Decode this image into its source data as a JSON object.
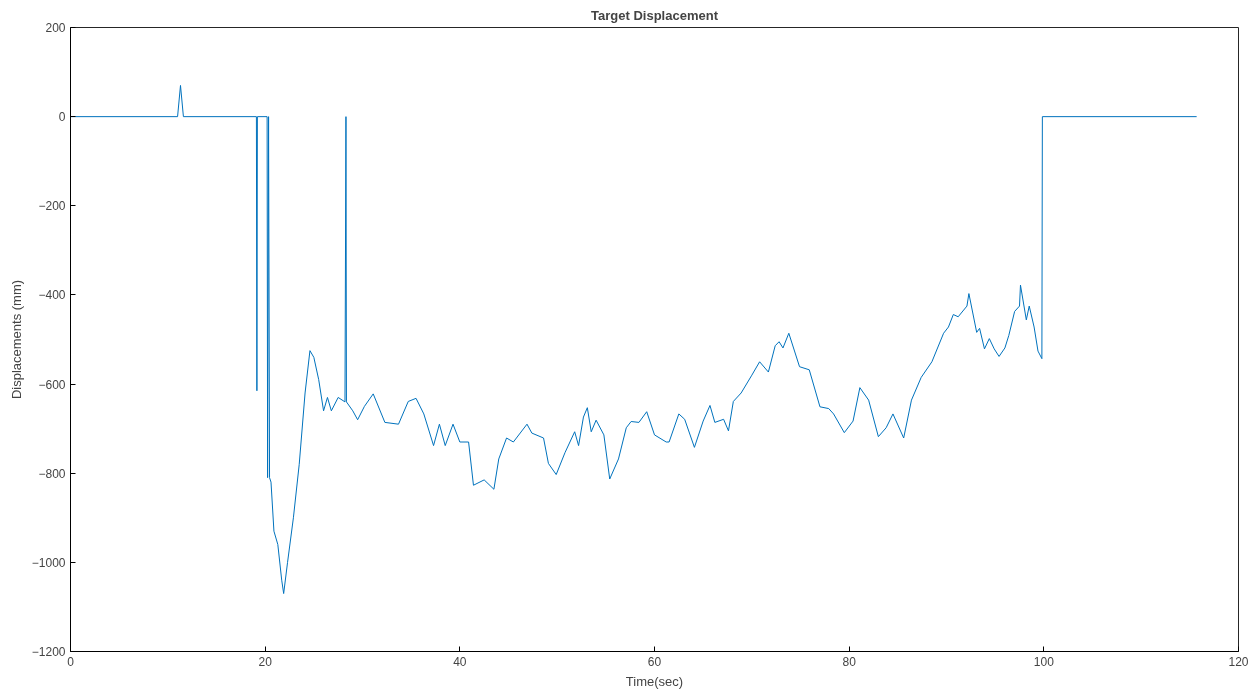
{
  "chart_data": {
    "type": "line",
    "title": "Target Displacement",
    "xlabel": "Time(sec)",
    "ylabel": "Displacements (mm)",
    "xlim": [
      0,
      120
    ],
    "ylim": [
      -1200,
      200
    ],
    "xticks": [
      0,
      20,
      40,
      60,
      80,
      100,
      120
    ],
    "yticks": [
      -1200,
      -1000,
      -800,
      -600,
      -400,
      -200,
      0,
      200
    ],
    "grid": false,
    "marker": "none",
    "line_style": "solid",
    "series": [
      {
        "color": "#0072bd",
        "x": [
          0,
          11.0,
          11.3,
          11.6,
          19.1,
          19.15,
          19.2,
          20.2,
          20.25,
          20.35,
          20.45,
          20.6,
          20.9,
          21.3,
          21.7,
          21.9,
          22.3,
          22.9,
          23.5,
          24.1,
          24.6,
          25.0,
          25.5,
          26.0,
          26.4,
          26.8,
          27.5,
          28.2,
          28.3,
          28.35,
          29.0,
          29.5,
          30.2,
          31.1,
          32.3,
          33.7,
          34.7,
          35.5,
          36.3,
          37.3,
          37.9,
          38.5,
          39.3,
          40.0,
          40.9,
          41.4,
          42.5,
          43.5,
          44.0,
          44.8,
          45.5,
          46.9,
          47.4,
          48.6,
          49.1,
          49.9,
          50.8,
          51.8,
          52.2,
          52.7,
          53.1,
          53.5,
          54.0,
          54.8,
          55.4,
          56.3,
          57.1,
          57.6,
          58.4,
          59.2,
          60.0,
          61.2,
          61.5,
          62.5,
          63.1,
          64.1,
          65.0,
          65.7,
          66.2,
          67.1,
          67.6,
          68.1,
          68.9,
          70.0,
          70.8,
          71.7,
          72.4,
          72.8,
          73.2,
          73.8,
          74.9,
          75.9,
          77.0,
          77.9,
          78.4,
          79.5,
          80.4,
          81.1,
          82.0,
          83.0,
          83.8,
          84.5,
          85.6,
          86.4,
          87.4,
          88.5,
          89.7,
          90.2,
          90.7,
          91.2,
          92.1,
          92.3,
          93.1,
          93.4,
          93.9,
          94.4,
          94.9,
          95.4,
          96.0,
          96.4,
          97.0,
          97.5,
          97.6,
          98.2,
          98.5,
          99.0,
          99.4,
          99.8,
          99.85,
          115.7
        ],
        "values": [
          0,
          0,
          70,
          0,
          0,
          -615,
          0,
          0,
          -810,
          0,
          -810,
          -820,
          -930,
          -960,
          -1040,
          -1070,
          -1000,
          -900,
          -780,
          -620,
          -525,
          -540,
          -590,
          -660,
          -630,
          -660,
          -630,
          -640,
          0,
          -640,
          -660,
          -680,
          -650,
          -622,
          -686,
          -690,
          -639,
          -632,
          -667,
          -738,
          -690,
          -738,
          -690,
          -730,
          -730,
          -827,
          -815,
          -836,
          -768,
          -721,
          -730,
          -690,
          -710,
          -721,
          -778,
          -803,
          -754,
          -707,
          -738,
          -674,
          -653,
          -707,
          -681,
          -714,
          -813,
          -768,
          -698,
          -684,
          -686,
          -662,
          -714,
          -730,
          -730,
          -667,
          -679,
          -742,
          -683,
          -648,
          -686,
          -679,
          -705,
          -639,
          -620,
          -580,
          -550,
          -573,
          -514,
          -505,
          -519,
          -486,
          -561,
          -568,
          -651,
          -655,
          -667,
          -709,
          -683,
          -608,
          -636,
          -718,
          -698,
          -667,
          -721,
          -636,
          -585,
          -550,
          -486,
          -472,
          -444,
          -449,
          -425,
          -397,
          -484,
          -475,
          -521,
          -498,
          -521,
          -538,
          -519,
          -491,
          -437,
          -425,
          -378,
          -456,
          -425,
          -472,
          -526,
          -543,
          0,
          0
        ]
      }
    ]
  }
}
